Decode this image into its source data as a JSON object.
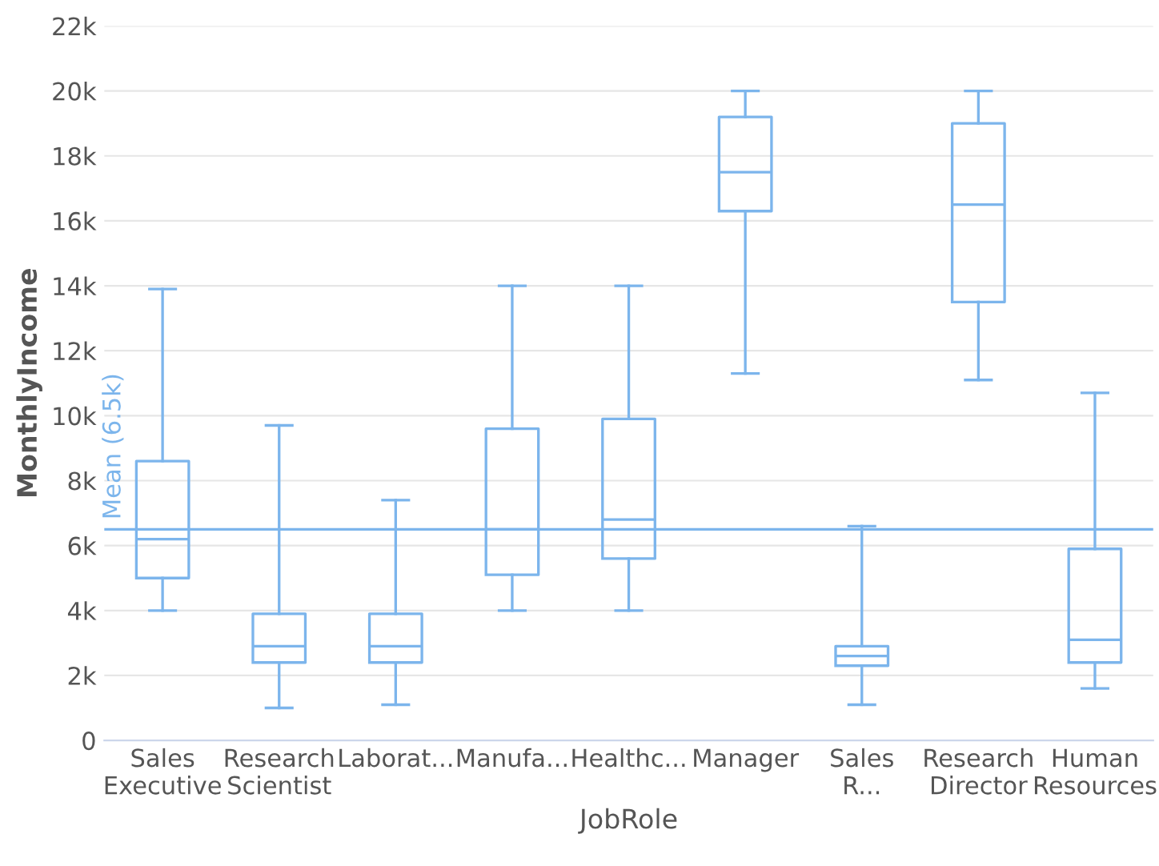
{
  "chart_data": {
    "type": "box",
    "xlabel": "JobRole",
    "ylabel": "MonthlyIncome",
    "categories": [
      "Sales Executive",
      "Research Scientist",
      "Laborat...",
      "Manufa...",
      "Healthc...",
      "Manager",
      "Sales R...",
      "Research Director",
      "Human Resources"
    ],
    "boxes": [
      {
        "low": 4000,
        "q1": 5000,
        "median": 6200,
        "q3": 8600,
        "high": 13900
      },
      {
        "low": 1000,
        "q1": 2400,
        "median": 2900,
        "q3": 3900,
        "high": 9700
      },
      {
        "low": 1100,
        "q1": 2400,
        "median": 2900,
        "q3": 3900,
        "high": 7400
      },
      {
        "low": 4000,
        "q1": 5100,
        "median": 6500,
        "q3": 9600,
        "high": 14000
      },
      {
        "low": 4000,
        "q1": 5600,
        "median": 6800,
        "q3": 9900,
        "high": 14000
      },
      {
        "low": 11300,
        "q1": 16300,
        "median": 17500,
        "q3": 19200,
        "high": 20000
      },
      {
        "low": 1100,
        "q1": 2300,
        "median": 2600,
        "q3": 2900,
        "high": 6600
      },
      {
        "low": 11100,
        "q1": 13500,
        "median": 16500,
        "q3": 19000,
        "high": 20000
      },
      {
        "low": 1600,
        "q1": 2400,
        "median": 3100,
        "q3": 5900,
        "high": 10700
      }
    ],
    "color": "#7cb5ec",
    "ylim": [
      0,
      22000
    ],
    "yticks": [
      {
        "value": 0,
        "label": "0"
      },
      {
        "value": 2000,
        "label": "2k"
      },
      {
        "value": 4000,
        "label": "4k"
      },
      {
        "value": 6000,
        "label": "6k"
      },
      {
        "value": 8000,
        "label": "8k"
      },
      {
        "value": 10000,
        "label": "10k"
      },
      {
        "value": 12000,
        "label": "12k"
      },
      {
        "value": 14000,
        "label": "14k"
      },
      {
        "value": 16000,
        "label": "16k"
      },
      {
        "value": 18000,
        "label": "18k"
      },
      {
        "value": 20000,
        "label": "20k"
      },
      {
        "value": 22000,
        "label": "22k"
      }
    ],
    "grid": "y",
    "ref_lines": [
      {
        "axis": "y",
        "value": 6500,
        "label": "Mean (6.5k)",
        "color": "#7cb5ec"
      }
    ]
  }
}
